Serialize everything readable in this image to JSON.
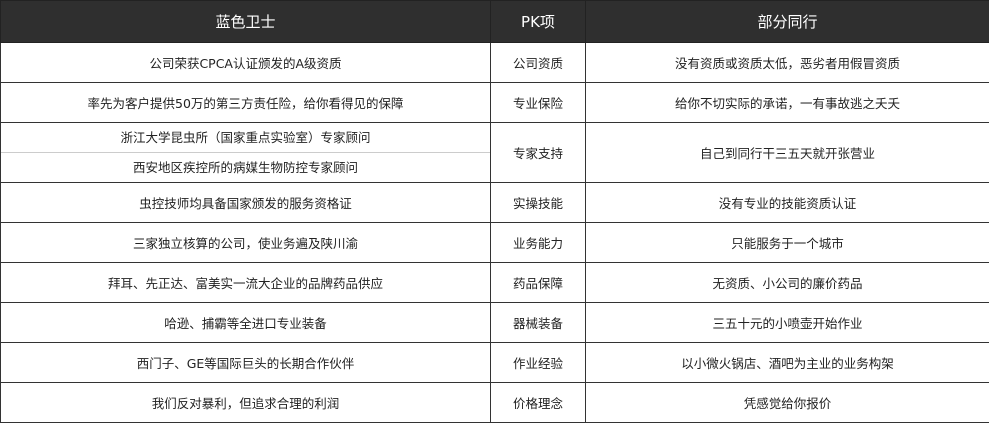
{
  "headers": [
    "蓝色卫士",
    "PK项",
    "部分同行"
  ],
  "rows": [
    {
      "ours": [
        "公司荣获CPCA认证颁发的A级资质"
      ],
      "item": "公司资质",
      "others": "没有资质或资质太低，恶劣者用假冒资质"
    },
    {
      "ours": [
        "率先为客户提供50万的第三方责任险，给你看得见的保障"
      ],
      "item": "专业保险",
      "others": "给你不切实际的承诺，一有事故逃之夭夭"
    },
    {
      "ours": [
        "浙江大学昆虫所（国家重点实验室）专家顾问",
        "西安地区疾控所的病媒生物防控专家顾问"
      ],
      "item": "专家支持",
      "others": "自己到同行干三五天就开张营业"
    },
    {
      "ours": [
        "虫控技师均具备国家颁发的服务资格证"
      ],
      "item": "实操技能",
      "others": "没有专业的技能资质认证"
    },
    {
      "ours": [
        "三家独立核算的公司，使业务遍及陕川渝"
      ],
      "item": "业务能力",
      "others": "只能服务于一个城市"
    },
    {
      "ours": [
        "拜耳、先正达、富美实一流大企业的品牌药品供应"
      ],
      "item": "药品保障",
      "others": "无资质、小公司的廉价药品"
    },
    {
      "ours": [
        "哈逊、捕霸等全进口专业装备"
      ],
      "item": "器械装备",
      "others": "三五十元的小喷壶开始作业"
    },
    {
      "ours": [
        "西门子、GE等国际巨头的长期合作伙伴"
      ],
      "item": "作业经验",
      "others": "以小微火锅店、酒吧为主业的业务构架"
    },
    {
      "ours": [
        "我们反对暴利，但追求合理的利润"
      ],
      "item": "价格理念",
      "others": "凭感觉给你报价"
    }
  ]
}
